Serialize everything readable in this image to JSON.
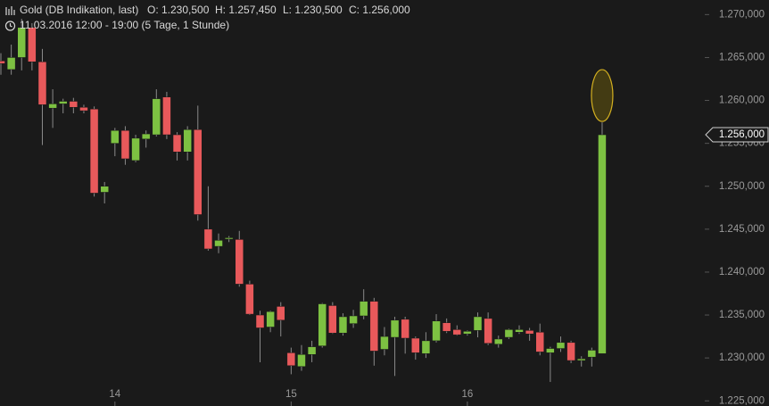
{
  "chart_data": {
    "type": "candlestick",
    "title": "Gold (DB Indikation, last)",
    "header": [
      "O: 1.230,500",
      "H: 1.257,450",
      "L: 1.230,500",
      "C: 1.256,000"
    ],
    "subtitle": "11.03.2016 12:00 - 19:00 (5 Tage, 1 Stunde)",
    "categories": [
      null,
      null,
      null,
      null,
      null,
      null,
      null,
      null,
      null,
      null,
      null,
      "14",
      null,
      null,
      null,
      null,
      null,
      null,
      null,
      null,
      null,
      null,
      null,
      null,
      null,
      null,
      null,
      null,
      "15",
      null,
      null,
      null,
      null,
      null,
      null,
      null,
      null,
      null,
      null,
      null,
      null,
      null,
      null,
      null,
      null,
      "16",
      null,
      null,
      null,
      null,
      null,
      null,
      null,
      null,
      null,
      null,
      null,
      null,
      null
    ],
    "up_color": "#7dc142",
    "down_color": "#e8595b",
    "open": [
      1264.6,
      1263.6,
      1265,
      1268.5,
      1264.5,
      1259.1,
      1259.6,
      1259.9,
      1259.2,
      1259,
      1249.3,
      1255,
      1256.5,
      1253,
      1255.5,
      1256,
      1260.4,
      1256,
      1254,
      1256.6,
      1245,
      1243,
      1243.9,
      1243.8,
      1238.6,
      1235,
      1233.6,
      1236,
      1230.6,
      1229,
      1230.4,
      1231.4,
      1236.1,
      1232.9,
      1234,
      1234.9,
      1236.6,
      1231,
      1232.4,
      1234.5,
      1232.3,
      1230.5,
      1232,
      1234.1,
      1233.3,
      1232.8,
      1233.2,
      1234.6,
      1231.6,
      1232.4,
      1233,
      1233.2,
      1233,
      1230.6,
      1231.1,
      1231.8,
      1229.7,
      1230.1,
      1230.5
    ],
    "high": [
      1265.5,
      1266.5,
      1269.5,
      1269,
      1266,
      1261.3,
      1260.2,
      1260.3,
      1259.5,
      1259.3,
      1250.5,
      1256.8,
      1257,
      1256,
      1256.5,
      1261.3,
      1261,
      1256.3,
      1257,
      1259.4,
      1250,
      1244.5,
      1244.2,
      1244.8,
      1239,
      1235.5,
      1235.5,
      1236.5,
      1231.2,
      1231.5,
      1232,
      1236.4,
      1236.5,
      1235.2,
      1235.6,
      1238,
      1237,
      1233.6,
      1234.8,
      1234.8,
      1232.5,
      1233,
      1235.1,
      1234.6,
      1233.8,
      1233.2,
      1235.3,
      1235.3,
      1232.6,
      1233.4,
      1233.8,
      1233.5,
      1234,
      1231.3,
      1232.5,
      1232,
      1230.2,
      1231.2,
      1257.45
    ],
    "low": [
      1263,
      1263,
      1263.5,
      1263.5,
      1254.8,
      1256.8,
      1258.5,
      1258.5,
      1258.5,
      1248.8,
      1248,
      1253.5,
      1252.5,
      1252.8,
      1254.5,
      1255.8,
      1255.5,
      1253,
      1253,
      1246,
      1242.5,
      1242.2,
      1243.5,
      1238.3,
      1235,
      1229.5,
      1233,
      1232.5,
      1228.1,
      1228.5,
      1229.5,
      1231.2,
      1232.8,
      1232.6,
      1233.5,
      1234.5,
      1229.1,
      1230.3,
      1227.9,
      1230.5,
      1229.8,
      1230,
      1231.8,
      1232.9,
      1232.6,
      1232.6,
      1232.4,
      1231.5,
      1231.2,
      1232.2,
      1232.8,
      1232,
      1230.3,
      1227.2,
      1230.7,
      1229.4,
      1229,
      1229,
      1230.5
    ],
    "close": [
      1264.3,
      1265,
      1268.5,
      1264.5,
      1259.5,
      1259.6,
      1259.9,
      1259.2,
      1258.8,
      1249.2,
      1250,
      1256.5,
      1253.2,
      1255.6,
      1256.1,
      1260.2,
      1256,
      1254,
      1256.6,
      1246.7,
      1242.7,
      1243.7,
      1244,
      1238.6,
      1235.1,
      1233.5,
      1235.4,
      1234.4,
      1229.1,
      1230.4,
      1231.3,
      1236.3,
      1232.9,
      1234.8,
      1234.9,
      1236.6,
      1230.8,
      1232.5,
      1234.4,
      1232.3,
      1230.6,
      1232,
      1234.3,
      1233.1,
      1232.7,
      1233.1,
      1234.8,
      1231.7,
      1232.2,
      1233.3,
      1233.3,
      1232.8,
      1230.7,
      1231.1,
      1231.8,
      1229.7,
      1229.9,
      1230.9,
      1256
    ],
    "last_price": {
      "value": 1256,
      "label": "1.256,000"
    },
    "ylim": [
      1224.4,
      1271.7
    ],
    "yticks": [
      {
        "value": 1225,
        "label": "1.225,000"
      },
      {
        "value": 1230,
        "label": "1.230,000"
      },
      {
        "value": 1235,
        "label": "1.235,000"
      },
      {
        "value": 1240,
        "label": "1.240,000"
      },
      {
        "value": 1245,
        "label": "1.245,000"
      },
      {
        "value": 1250,
        "label": "1.250,000"
      },
      {
        "value": 1255,
        "label": "1.255,000"
      },
      {
        "value": 1260,
        "label": "1.260,000"
      },
      {
        "value": 1265,
        "label": "1.265,000"
      },
      {
        "value": 1270,
        "label": "1.270,000"
      }
    ]
  }
}
